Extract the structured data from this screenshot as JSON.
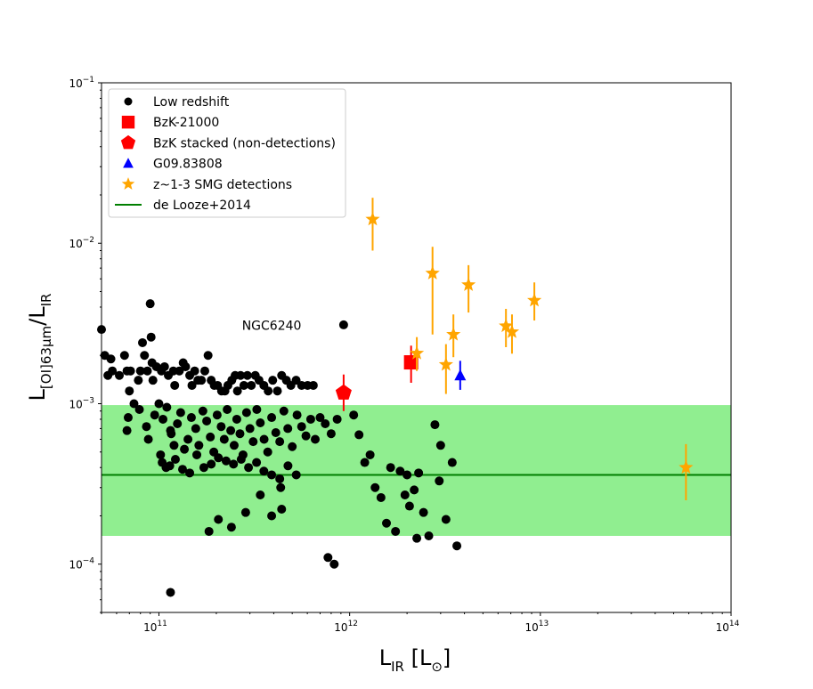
{
  "chart_data": {
    "type": "scatter",
    "title": "",
    "xscale": "log",
    "yscale": "log",
    "xlim": [
      50000000000.0,
      100000000000000.0
    ],
    "ylim": [
      5e-05,
      0.1
    ],
    "x_ticks": [
      {
        "value": 100000000000.0,
        "base": "10",
        "exp": "11"
      },
      {
        "value": 1000000000000.0,
        "base": "10",
        "exp": "12"
      },
      {
        "value": 10000000000000.0,
        "base": "10",
        "exp": "13"
      },
      {
        "value": 100000000000000.0,
        "base": "10",
        "exp": "14"
      }
    ],
    "y_ticks": [
      {
        "value": 0.0001,
        "base": "10",
        "exp": "−4"
      },
      {
        "value": 0.001,
        "base": "10",
        "exp": "−3"
      },
      {
        "value": 0.01,
        "base": "10",
        "exp": "−2"
      },
      {
        "value": 0.1,
        "base": "10",
        "exp": "−1"
      }
    ],
    "xlabel": {
      "main": "L",
      "sub": "IR",
      "rest": " [L",
      "sub2": "⊙",
      "end": "]"
    },
    "ylabel": {
      "p1": "L",
      "sub1": "[OI]63μm",
      "p2": "/L",
      "sub2": "IR"
    },
    "colors": {
      "black": "#000000",
      "red": "#ff0000",
      "blue": "#0000ff",
      "orange": "#ffa500",
      "green": "#007f00",
      "band": "#90ee90"
    },
    "band": {
      "y_low": 0.00015,
      "y_high": 0.00098
    },
    "line": {
      "y": 0.00036
    },
    "annotations": [
      {
        "text": "NGC6240",
        "x": 390000000000.0,
        "y": 0.00308
      }
    ],
    "legend": {
      "position": "upper-left",
      "entries": [
        {
          "label": "Low redshift",
          "marker": "circle",
          "color": "#000000"
        },
        {
          "label": "BzK-21000",
          "marker": "square",
          "color": "#ff0000"
        },
        {
          "label": "BzK stacked (non-detections)",
          "marker": "pentagon",
          "color": "#ff0000"
        },
        {
          "label": "G09.83808",
          "marker": "triangle",
          "color": "#0000ff"
        },
        {
          "label": "z~1-3 SMG detections",
          "marker": "star",
          "color": "#ffa500"
        },
        {
          "label": "de Looze+2014",
          "marker": "line",
          "color": "#007f00"
        }
      ]
    },
    "series": [
      {
        "name": "Low redshift",
        "marker": "circle",
        "color": "#000000",
        "points": [
          [
            50000000000.0,
            0.0029
          ],
          [
            52000000000.0,
            0.002
          ],
          [
            56000000000.0,
            0.0019
          ],
          [
            57000000000.0,
            0.0016
          ],
          [
            54000000000.0,
            0.0015
          ],
          [
            62000000000.0,
            0.0015
          ],
          [
            66000000000.0,
            0.002
          ],
          [
            68000000000.0,
            0.0016
          ],
          [
            71000000000.0,
            0.0016
          ],
          [
            78000000000.0,
            0.0014
          ],
          [
            80000000000.0,
            0.0016
          ],
          [
            82000000000.0,
            0.0024
          ],
          [
            84000000000.0,
            0.002
          ],
          [
            87000000000.0,
            0.0016
          ],
          [
            90000000000.0,
            0.0042
          ],
          [
            91000000000.0,
            0.0026
          ],
          [
            92000000000.0,
            0.0018
          ],
          [
            93000000000.0,
            0.0014
          ],
          [
            97000000000.0,
            0.0017
          ],
          [
            103000000000.0,
            0.0016
          ],
          [
            107000000000.0,
            0.0017
          ],
          [
            112000000000.0,
            0.0015
          ],
          [
            119000000000.0,
            0.0016
          ],
          [
            121000000000.0,
            0.0013
          ],
          [
            128000000000.0,
            0.0016
          ],
          [
            134000000000.0,
            0.0018
          ],
          [
            138000000000.0,
            0.0017
          ],
          [
            145000000000.0,
            0.0015
          ],
          [
            149000000000.0,
            0.0013
          ],
          [
            154000000000.0,
            0.0016
          ],
          [
            160000000000.0,
            0.0014
          ],
          [
            167000000000.0,
            0.0014
          ],
          [
            174000000000.0,
            0.0016
          ],
          [
            181000000000.0,
            0.002
          ],
          [
            188000000000.0,
            0.0014
          ],
          [
            195000000000.0,
            0.0013
          ],
          [
            203000000000.0,
            0.0013
          ],
          [
            213000000000.0,
            0.0012
          ],
          [
            222000000000.0,
            0.0012
          ],
          [
            230000000000.0,
            0.0013
          ],
          [
            241000000000.0,
            0.0014
          ],
          [
            251000000000.0,
            0.0015
          ],
          [
            258000000000.0,
            0.0012
          ],
          [
            268000000000.0,
            0.0015
          ],
          [
            279000000000.0,
            0.0013
          ],
          [
            291000000000.0,
            0.0015
          ],
          [
            305000000000.0,
            0.0013
          ],
          [
            320000000000.0,
            0.0015
          ],
          [
            335000000000.0,
            0.0014
          ],
          [
            355000000000.0,
            0.0013
          ],
          [
            374000000000.0,
            0.0012
          ],
          [
            395000000000.0,
            0.0014
          ],
          [
            418000000000.0,
            0.0012
          ],
          [
            440000000000.0,
            0.0015
          ],
          [
            466000000000.0,
            0.0014
          ],
          [
            492000000000.0,
            0.0013
          ],
          [
            524000000000.0,
            0.0014
          ],
          [
            560000000000.0,
            0.0013
          ],
          [
            602000000000.0,
            0.0013
          ],
          [
            645000000000.0,
            0.0013
          ],
          [
            70000000000.0,
            0.0012
          ],
          [
            74000000000.0,
            0.001
          ],
          [
            69000000000.0,
            0.00082
          ],
          [
            68000000000.0,
            0.00068
          ],
          [
            79000000000.0,
            0.00092
          ],
          [
            86000000000.0,
            0.00072
          ],
          [
            88000000000.0,
            0.0006
          ],
          [
            95000000000.0,
            0.00085
          ],
          [
            100000000000.0,
            0.001
          ],
          [
            105000000000.0,
            0.0008
          ],
          [
            110000000000.0,
            0.00095
          ],
          [
            116000000000.0,
            0.00065
          ],
          [
            120000000000.0,
            0.00055
          ],
          [
            125000000000.0,
            0.00075
          ],
          [
            130000000000.0,
            0.00088
          ],
          [
            136000000000.0,
            0.00052
          ],
          [
            142000000000.0,
            0.0006
          ],
          [
            148000000000.0,
            0.00082
          ],
          [
            156000000000.0,
            0.0007
          ],
          [
            162000000000.0,
            0.00055
          ],
          [
            170000000000.0,
            0.0009
          ],
          [
            178000000000.0,
            0.00078
          ],
          [
            186000000000.0,
            0.00062
          ],
          [
            194000000000.0,
            0.0005
          ],
          [
            202000000000.0,
            0.00085
          ],
          [
            212000000000.0,
            0.00072
          ],
          [
            220000000000.0,
            0.0006
          ],
          [
            228000000000.0,
            0.00092
          ],
          [
            238000000000.0,
            0.00068
          ],
          [
            248000000000.0,
            0.00055
          ],
          [
            256000000000.0,
            0.0008
          ],
          [
            266000000000.0,
            0.00065
          ],
          [
            276000000000.0,
            0.00048
          ],
          [
            288000000000.0,
            0.00088
          ],
          [
            300000000000.0,
            0.0007
          ],
          [
            312000000000.0,
            0.00058
          ],
          [
            326000000000.0,
            0.00092
          ],
          [
            340000000000.0,
            0.00076
          ],
          [
            356000000000.0,
            0.0006
          ],
          [
            372000000000.0,
            0.0005
          ],
          [
            390000000000.0,
            0.00082
          ],
          [
            410000000000.0,
            0.00066
          ],
          [
            430000000000.0,
            0.00058
          ],
          [
            452000000000.0,
            0.0009
          ],
          [
            474000000000.0,
            0.0007
          ],
          [
            500000000000.0,
            0.00054
          ],
          [
            530000000000.0,
            0.00085
          ],
          [
            560000000000.0,
            0.00072
          ],
          [
            590000000000.0,
            0.00063
          ],
          [
            625000000000.0,
            0.0008
          ],
          [
            660000000000.0,
            0.0006
          ],
          [
            700000000000.0,
            0.00082
          ],
          [
            745000000000.0,
            0.00075
          ],
          [
            800000000000.0,
            0.00065
          ],
          [
            860000000000.0,
            0.0008
          ],
          [
            102000000000.0,
            0.00048
          ],
          [
            114000000000.0,
            0.00041
          ],
          [
            122000000000.0,
            0.00045
          ],
          [
            133000000000.0,
            0.00039
          ],
          [
            145000000000.0,
            0.00037
          ],
          [
            158000000000.0,
            0.00048
          ],
          [
            172000000000.0,
            0.0004
          ],
          [
            188000000000.0,
            0.00042
          ],
          [
            205000000000.0,
            0.00046
          ],
          [
            225000000000.0,
            0.00044
          ],
          [
            246000000000.0,
            0.00042
          ],
          [
            270000000000.0,
            0.00045
          ],
          [
            295000000000.0,
            0.0004
          ],
          [
            325000000000.0,
            0.00043
          ],
          [
            355000000000.0,
            0.00038
          ],
          [
            390000000000.0,
            0.00036
          ],
          [
            430000000000.0,
            0.00034
          ],
          [
            475000000000.0,
            0.00041
          ],
          [
            525000000000.0,
            0.00036
          ],
          [
            104000000000.0,
            0.00043
          ],
          [
            109000000000.0,
            0.0004
          ],
          [
            115000000000.0,
            0.00068
          ],
          [
            183000000000.0,
            0.00016
          ],
          [
            205000000000.0,
            0.00019
          ],
          [
            240000000000.0,
            0.00017
          ],
          [
            285000000000.0,
            0.00021
          ],
          [
            340000000000.0,
            0.00027
          ],
          [
            390000000000.0,
            0.0002
          ],
          [
            440000000000.0,
            0.00022
          ],
          [
            435000000000.0,
            0.0003
          ],
          [
            115000000000.0,
            6.67e-05
          ],
          [
            770000000000.0,
            0.00011
          ],
          [
            830000000000.0,
            0.0001
          ],
          [
            930000000000.0,
            0.0031
          ],
          [
            1050000000000.0,
            0.00085
          ],
          [
            1120000000000.0,
            0.00064
          ],
          [
            1200000000000.0,
            0.00043
          ],
          [
            1280000000000.0,
            0.00048
          ],
          [
            1360000000000.0,
            0.0003
          ],
          [
            1460000000000.0,
            0.00026
          ],
          [
            1560000000000.0,
            0.00018
          ],
          [
            1640000000000.0,
            0.0004
          ],
          [
            1740000000000.0,
            0.00016
          ],
          [
            1840000000000.0,
            0.00038
          ],
          [
            1950000000000.0,
            0.00027
          ],
          [
            2060000000000.0,
            0.00023
          ],
          [
            2180000000000.0,
            0.00029
          ],
          [
            2300000000000.0,
            0.00037
          ],
          [
            2440000000000.0,
            0.00021
          ],
          [
            2600000000000.0,
            0.00015
          ],
          [
            2800000000000.0,
            0.00074
          ],
          [
            3000000000000.0,
            0.00055
          ],
          [
            3200000000000.0,
            0.00019
          ],
          [
            3450000000000.0,
            0.00043
          ],
          [
            3650000000000.0,
            0.00013
          ],
          [
            2250000000000.0,
            0.000145
          ],
          [
            2950000000000.0,
            0.00033
          ],
          [
            2000000000000.0,
            0.00036
          ]
        ]
      },
      {
        "name": "BzK-21000",
        "marker": "square",
        "color": "#ff0000",
        "points": [
          [
            2100000000000.0,
            0.00181
          ]
        ],
        "yerr_low": [
          0.00135
        ],
        "yerr_high": [
          0.0023
        ]
      },
      {
        "name": "BzK stacked (non-detections)",
        "marker": "pentagon",
        "color": "#ff0000",
        "points": [
          [
            930000000000.0,
            0.00117
          ]
        ],
        "yerr_low": [
          0.0009
        ],
        "yerr_high": [
          0.00152
        ]
      },
      {
        "name": "G09.83808",
        "marker": "triangle",
        "color": "#0000ff",
        "points": [
          [
            3800000000000.0,
            0.0015
          ]
        ],
        "yerr_low": [
          0.00122
        ],
        "yerr_high": [
          0.00185
        ]
      },
      {
        "name": "z~1-3 SMG detections",
        "marker": "star",
        "color": "#ffa500",
        "points": [
          [
            1320000000000.0,
            0.0141
          ],
          [
            2250000000000.0,
            0.00206
          ],
          [
            2720000000000.0,
            0.0065
          ],
          [
            3200000000000.0,
            0.00175
          ],
          [
            3500000000000.0,
            0.0027
          ],
          [
            4200000000000.0,
            0.0055
          ],
          [
            6600000000000.0,
            0.00305
          ],
          [
            7100000000000.0,
            0.0028
          ],
          [
            9300000000000.0,
            0.0044
          ],
          [
            58000000000000.0,
            0.0004
          ]
        ],
        "yerr_low": [
          0.009,
          0.0016,
          0.0027,
          0.00115,
          0.00195,
          0.0037,
          0.00225,
          0.00205,
          0.0033,
          0.00025
        ],
        "yerr_high": [
          0.0192,
          0.0026,
          0.0095,
          0.00235,
          0.0036,
          0.0073,
          0.0039,
          0.0036,
          0.0057,
          0.00056
        ]
      }
    ]
  }
}
